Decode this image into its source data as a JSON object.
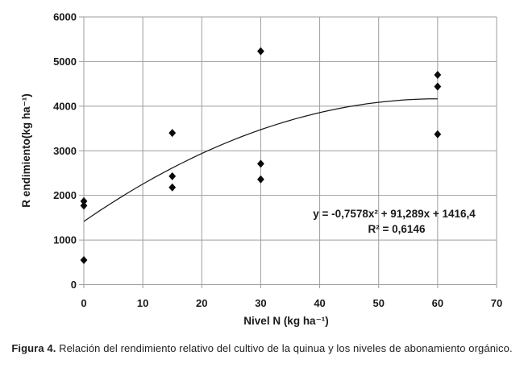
{
  "figure": {
    "caption_bold": "Figura 4.",
    "caption_rest": " Relación del rendimiento relativo del cultivo de la quinua y los niveles de abonamiento orgánico."
  },
  "chart_data": {
    "type": "scatter",
    "xlabel": "Nivel N (kg ha⁻¹)",
    "ylabel": "R endimiento(kg ha⁻¹)",
    "xlim": [
      0,
      70
    ],
    "ylim": [
      0,
      6000
    ],
    "x_ticks": [
      0,
      10,
      20,
      30,
      40,
      50,
      60,
      70
    ],
    "y_ticks": [
      0,
      1000,
      2000,
      3000,
      4000,
      5000,
      6000
    ],
    "grid": true,
    "legend": "none",
    "marker": "diamond",
    "points": [
      [
        0,
        550
      ],
      [
        0,
        1770
      ],
      [
        0,
        1870
      ],
      [
        15,
        2180
      ],
      [
        15,
        2430
      ],
      [
        15,
        3400
      ],
      [
        30,
        2360
      ],
      [
        30,
        2710
      ],
      [
        30,
        5230
      ],
      [
        60,
        3370
      ],
      [
        60,
        4440
      ],
      [
        60,
        4700
      ]
    ],
    "trendline": {
      "form": "quadratic",
      "coefficients": [
        -0.7578,
        91.289,
        1416.4
      ],
      "x_range": [
        0,
        60
      ],
      "equation_label": "y = -0,7578x² + 91,289x + 1416,4",
      "r2_label": "R² = 0,6146"
    },
    "colors": {
      "marker": "#0a0a0a",
      "trendline": "#1a1a1a",
      "grid": "#9e9e9e",
      "text": "#1a1a1a"
    }
  }
}
